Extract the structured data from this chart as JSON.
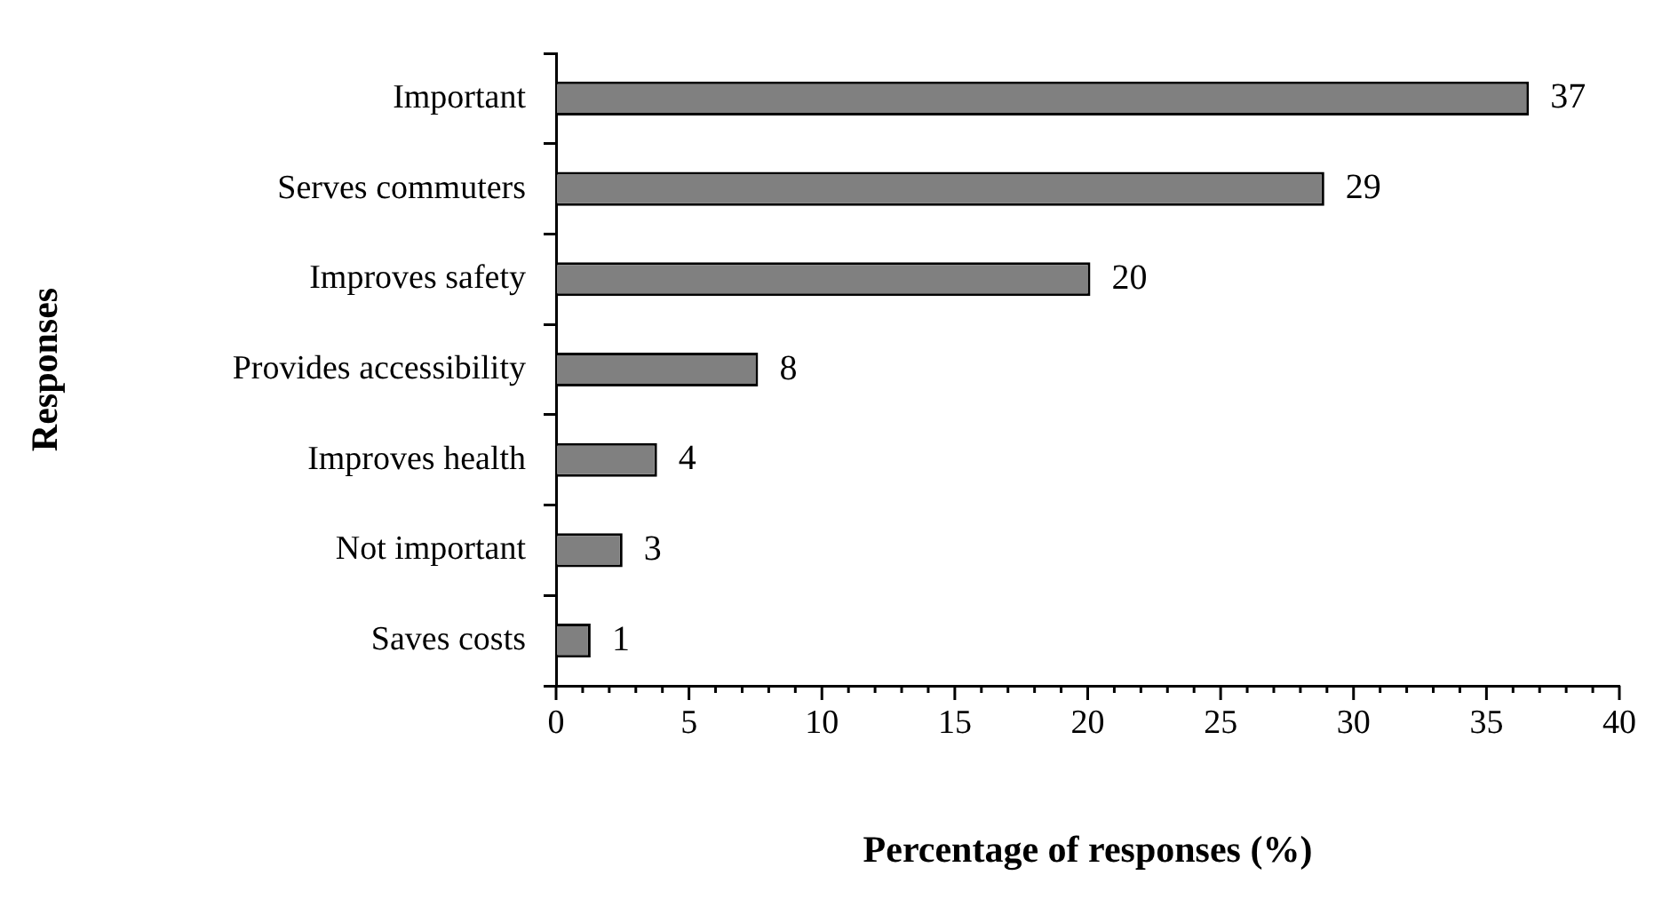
{
  "chart_data": {
    "type": "bar",
    "orientation": "horizontal",
    "xlabel": "Percentage of responses (%)",
    "ylabel": "Responses",
    "categories": [
      "Important",
      "Serves commuters",
      "Improves safety",
      "Provides accessibility",
      "Improves health",
      "Not important",
      "Saves costs"
    ],
    "values": [
      36.6,
      28.9,
      20.1,
      7.6,
      3.8,
      2.5,
      1.3
    ],
    "value_labels": [
      "37",
      "29",
      "20",
      "8",
      "4",
      "3",
      "1"
    ],
    "color": "#808080",
    "xlim": [
      0,
      40
    ],
    "xticks": [
      0,
      {
        "value": 1,
        "label": null
      },
      {
        "value": 2,
        "label": null
      },
      {
        "value": 3,
        "label": null
      },
      {
        "value": 4,
        "label": null
      },
      5,
      {
        "value": 6,
        "label": null
      },
      {
        "value": 7,
        "label": null
      },
      {
        "value": 8,
        "label": null
      },
      {
        "value": 9,
        "label": null
      },
      10,
      {
        "value": 11,
        "label": null
      },
      {
        "value": 12,
        "label": null
      },
      {
        "value": 13,
        "label": null
      },
      {
        "value": 14,
        "label": null
      },
      15,
      {
        "value": 16,
        "label": null
      },
      {
        "value": 17,
        "label": null
      },
      {
        "value": 18,
        "label": null
      },
      {
        "value": 19,
        "label": null
      },
      20,
      {
        "value": 21,
        "label": null
      },
      {
        "value": 22,
        "label": null
      },
      {
        "value": 23,
        "label": null
      },
      {
        "value": 24,
        "label": null
      },
      25,
      {
        "value": 26,
        "label": null
      },
      {
        "value": 27,
        "label": null
      },
      {
        "value": 28,
        "label": null
      },
      {
        "value": 29,
        "label": null
      },
      30,
      {
        "value": 31,
        "label": null
      },
      {
        "value": 32,
        "label": null
      },
      {
        "value": 33,
        "label": null
      },
      {
        "value": 34,
        "label": null
      },
      35,
      {
        "value": 36,
        "label": null
      },
      {
        "value": 37,
        "label": null
      },
      {
        "value": 38,
        "label": null
      },
      {
        "value": 39,
        "label": null
      },
      40
    ],
    "grid": false,
    "legend": false
  }
}
